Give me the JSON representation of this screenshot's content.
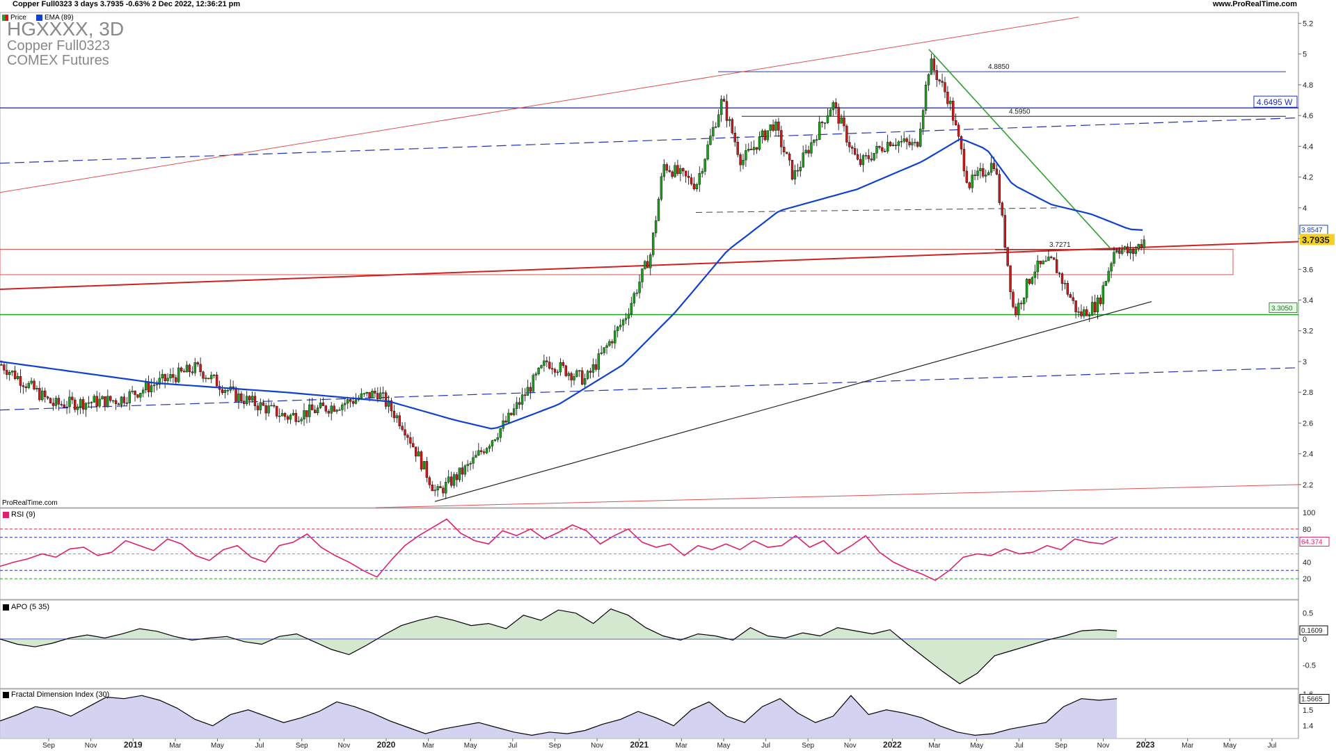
{
  "header": {
    "info": "Copper Full0323 3 days 3.7935 -0.63% 2 Dec 2022, 12:36:21 pm",
    "website": "www.ProRealTime.com",
    "legend_price": "Price",
    "legend_ema": "EMA (89)",
    "symbol": "HGXXXX, 3D",
    "name": "Copper Full0323",
    "exchange": "COMEX Futures",
    "watermark": "ProRealTime.com"
  },
  "chart_data": [
    {
      "type": "candlestick",
      "y_ticks": [
        "5.2",
        "5",
        "4.8",
        "4.6",
        "4.4",
        "4.2",
        "4",
        "3.8",
        "3.6",
        "3.4",
        "3.2",
        "3",
        "2.8",
        "2.6",
        "2.4",
        "2.2"
      ],
      "ylim": [
        2.05,
        5.27
      ],
      "x_ticks": [
        "Sep",
        "Nov",
        "2019",
        "Mar",
        "May",
        "Jul",
        "Sep",
        "Nov",
        "2020",
        "Mar",
        "May",
        "Jul",
        "Sep",
        "Nov",
        "2021",
        "Mar",
        "May",
        "Jul",
        "Sep",
        "Nov",
        "2022",
        "Mar",
        "May",
        "Jul",
        "Sep",
        "Nov",
        "2023",
        "Mar",
        "May",
        "Jul"
      ],
      "last_price": "3.7935",
      "ema_label": "EMA (89)",
      "ema_last": "3.8547",
      "levels": {
        "resistance_w": "4.6495 W",
        "support": "3.3050",
        "high_line": "4.8850",
        "mid_line": "4.5950",
        "neck_line": "3.7271"
      },
      "price_path": [
        [
          0,
          2.98
        ],
        [
          0.04,
          2.72
        ],
        [
          0.09,
          2.75
        ],
        [
          0.12,
          2.86
        ],
        [
          0.15,
          2.96
        ],
        [
          0.18,
          2.78
        ],
        [
          0.22,
          2.64
        ],
        [
          0.26,
          2.72
        ],
        [
          0.29,
          2.8
        ],
        [
          0.31,
          2.58
        ],
        [
          0.335,
          2.14
        ],
        [
          0.36,
          2.32
        ],
        [
          0.39,
          2.62
        ],
        [
          0.42,
          3.0
        ],
        [
          0.45,
          2.88
        ],
        [
          0.48,
          3.28
        ],
        [
          0.5,
          3.7
        ],
        [
          0.51,
          4.28
        ],
        [
          0.535,
          4.15
        ],
        [
          0.555,
          4.7
        ],
        [
          0.57,
          4.3
        ],
        [
          0.595,
          4.55
        ],
        [
          0.61,
          4.2
        ],
        [
          0.64,
          4.68
        ],
        [
          0.66,
          4.28
        ],
        [
          0.685,
          4.44
        ],
        [
          0.705,
          4.4
        ],
        [
          0.715,
          4.95
        ],
        [
          0.73,
          4.7
        ],
        [
          0.745,
          4.15
        ],
        [
          0.765,
          4.3
        ],
        [
          0.78,
          3.3
        ],
        [
          0.795,
          3.6
        ],
        [
          0.81,
          3.65
        ],
        [
          0.83,
          3.3
        ],
        [
          0.845,
          3.38
        ],
        [
          0.858,
          3.75
        ],
        [
          0.87,
          3.7
        ],
        [
          0.88,
          3.79
        ]
      ],
      "ema_path": [
        [
          0,
          3.0
        ],
        [
          0.12,
          2.86
        ],
        [
          0.22,
          2.8
        ],
        [
          0.3,
          2.74
        ],
        [
          0.35,
          2.62
        ],
        [
          0.38,
          2.56
        ],
        [
          0.43,
          2.72
        ],
        [
          0.48,
          2.98
        ],
        [
          0.52,
          3.32
        ],
        [
          0.56,
          3.72
        ],
        [
          0.6,
          3.98
        ],
        [
          0.66,
          4.12
        ],
        [
          0.71,
          4.3
        ],
        [
          0.74,
          4.45
        ],
        [
          0.76,
          4.38
        ],
        [
          0.78,
          4.15
        ],
        [
          0.81,
          4.02
        ],
        [
          0.84,
          3.96
        ],
        [
          0.87,
          3.86
        ],
        [
          0.88,
          3.8547
        ]
      ]
    },
    {
      "type": "line",
      "title": "RSI (9)",
      "y_ticks": [
        "100",
        "80",
        "40",
        "20"
      ],
      "ylim": [
        0,
        100
      ],
      "last_value": "64.374",
      "reference_levels": [
        80,
        70,
        50,
        30,
        20
      ],
      "values": [
        35,
        40,
        44,
        50,
        46,
        56,
        58,
        48,
        52,
        66,
        60,
        54,
        68,
        62,
        48,
        42,
        55,
        60,
        46,
        40,
        60,
        64,
        74,
        58,
        48,
        40,
        30,
        22,
        42,
        60,
        72,
        82,
        92,
        75,
        66,
        62,
        78,
        72,
        80,
        68,
        76,
        85,
        78,
        62,
        72,
        80,
        64,
        58,
        62,
        48,
        60,
        55,
        62,
        55,
        66,
        58,
        60,
        72,
        58,
        66,
        50,
        60,
        72,
        52,
        40,
        32,
        26,
        18,
        30,
        46,
        50,
        48,
        56,
        50,
        52,
        60,
        55,
        68,
        64,
        62,
        70
      ]
    },
    {
      "type": "area",
      "title": "APO (5 35)",
      "y_ticks": [
        "0.5",
        "0",
        "-0.5"
      ],
      "ylim": [
        -0.95,
        0.75
      ],
      "last_value": "0.1609",
      "values": [
        0.0,
        -0.1,
        -0.15,
        -0.08,
        0.02,
        0.08,
        0.02,
        0.1,
        0.2,
        0.15,
        0.05,
        -0.02,
        0.02,
        0.05,
        -0.05,
        -0.1,
        0.05,
        0.1,
        -0.05,
        -0.2,
        -0.3,
        -0.12,
        0.08,
        0.26,
        0.36,
        0.44,
        0.36,
        0.26,
        0.3,
        0.2,
        0.46,
        0.36,
        0.56,
        0.5,
        0.3,
        0.58,
        0.46,
        0.22,
        0.06,
        -0.02,
        0.1,
        0.06,
        -0.02,
        0.22,
        0.06,
        0.02,
        0.12,
        0.06,
        0.22,
        0.16,
        0.1,
        0.18,
        -0.1,
        -0.36,
        -0.62,
        -0.86,
        -0.66,
        -0.32,
        -0.22,
        -0.12,
        -0.02,
        0.06,
        0.16,
        0.18,
        0.16
      ]
    },
    {
      "type": "area",
      "title": "Fractal Dimension Index (30)",
      "y_ticks": [
        "1.6",
        "1.5",
        "1.4"
      ],
      "ylim": [
        1.32,
        1.63
      ],
      "last_value": "1.5665",
      "values": [
        1.43,
        1.47,
        1.52,
        1.5,
        1.46,
        1.52,
        1.58,
        1.57,
        1.59,
        1.56,
        1.51,
        1.44,
        1.4,
        1.47,
        1.5,
        1.46,
        1.42,
        1.45,
        1.49,
        1.55,
        1.52,
        1.48,
        1.43,
        1.39,
        1.35,
        1.38,
        1.4,
        1.42,
        1.39,
        1.36,
        1.34,
        1.36,
        1.35,
        1.37,
        1.41,
        1.44,
        1.49,
        1.45,
        1.4,
        1.5,
        1.55,
        1.46,
        1.42,
        1.52,
        1.57,
        1.48,
        1.42,
        1.46,
        1.59,
        1.47,
        1.5,
        1.48,
        1.45,
        1.4,
        1.36,
        1.34,
        1.35,
        1.38,
        1.4,
        1.42,
        1.52,
        1.57,
        1.56,
        1.57
      ]
    }
  ]
}
